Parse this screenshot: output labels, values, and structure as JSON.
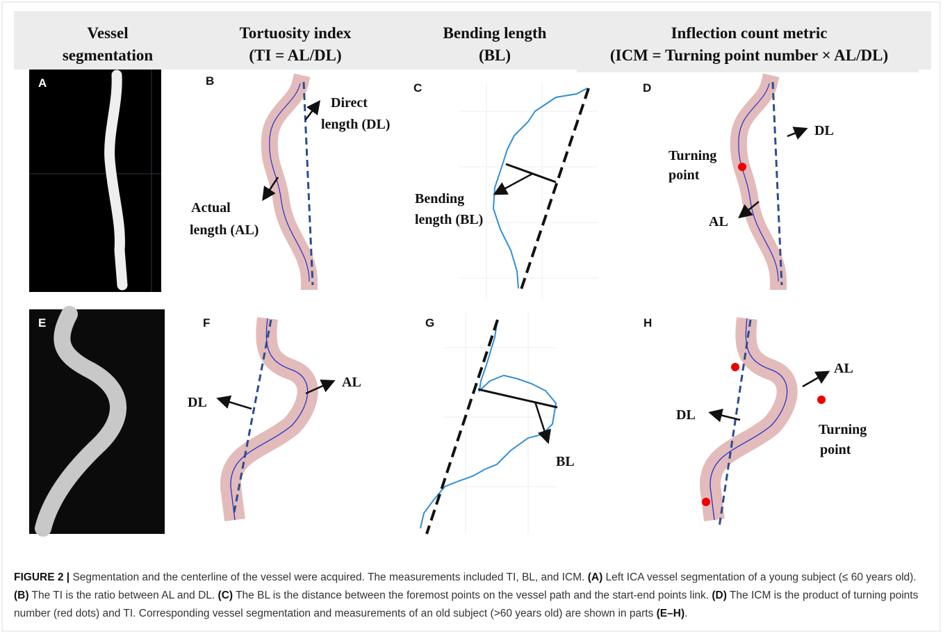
{
  "headers": [
    {
      "lines": [
        "Vessel",
        "segmentation"
      ]
    },
    {
      "lines": [
        "Tortuosity index",
        "(TI = AL/DL)"
      ]
    },
    {
      "lines": [
        "Bending length",
        "(BL)"
      ]
    },
    {
      "lines": [
        "Inflection count metric",
        "(ICM = Turning point number × AL/DL)"
      ]
    }
  ],
  "panels": {
    "A": {
      "letter": "A"
    },
    "B": {
      "letter": "B",
      "direct": [
        "Direct",
        "length (DL)"
      ],
      "actual": [
        "Actual",
        "length (AL)"
      ]
    },
    "C": {
      "letter": "C",
      "bending": [
        "Bending",
        "length (BL)"
      ]
    },
    "D": {
      "letter": "D",
      "dl": "DL",
      "turning": [
        "Turning",
        "point"
      ],
      "al": "AL"
    },
    "E": {
      "letter": "E"
    },
    "F": {
      "letter": "F",
      "dl": "DL",
      "al": "AL"
    },
    "G": {
      "letter": "G",
      "bl": "BL"
    },
    "H": {
      "letter": "H",
      "al": "AL",
      "dl": "DL",
      "turning": [
        "Turning",
        "point"
      ]
    }
  },
  "caption": [
    {
      "text": "FIGURE 2 |",
      "bold": true
    },
    {
      "text": " Segmentation and the centerline of the vessel were acquired. The measurements included TI, BL, and ICM. ",
      "bold": false
    },
    {
      "text": "(A)",
      "bold": true
    },
    {
      "text": " Left ICA vessel segmentation of a young subject (≤ 60 years old). ",
      "bold": false
    },
    {
      "text": "(B)",
      "bold": true
    },
    {
      "text": " The TI is the ratio between AL and DL. ",
      "bold": false
    },
    {
      "text": "(C)",
      "bold": true
    },
    {
      "text": " The BL is the distance between the foremost points on the vessel path and the start-end points link. ",
      "bold": false
    },
    {
      "text": "(D)",
      "bold": true
    },
    {
      "text": " The ICM is the product of turning points number (red dots) and TI. Corresponding vessel segmentation and measurements of an old subject (>60 years old) are shown in parts ",
      "bold": false
    },
    {
      "text": "(E–H)",
      "bold": true
    },
    {
      "text": ".",
      "bold": false
    }
  ]
}
